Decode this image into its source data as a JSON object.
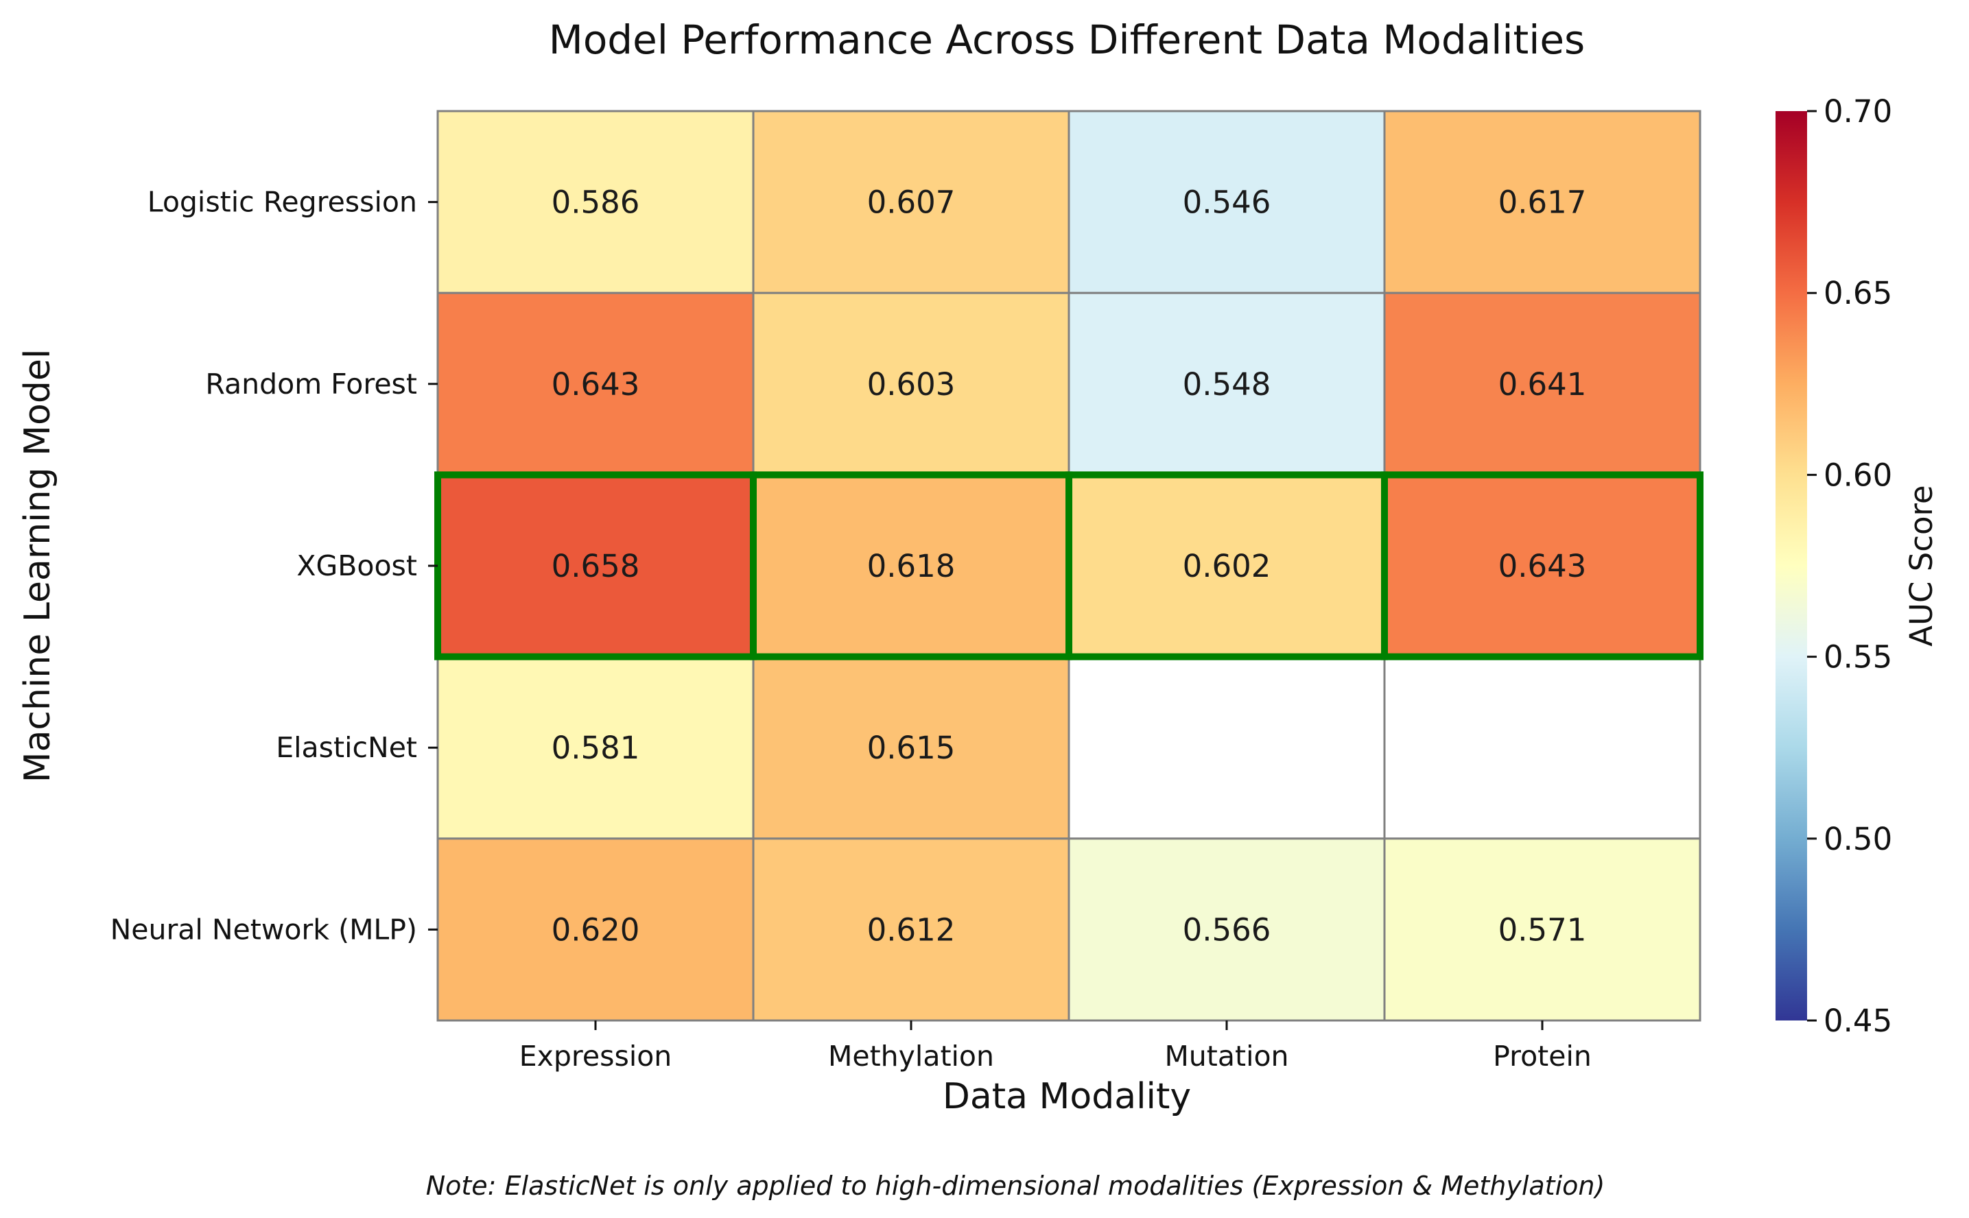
{
  "chart_data": {
    "type": "heatmap",
    "title": "Model Performance Across Different Data Modalities",
    "xlabel": "Data Modality",
    "ylabel": "Machine Learning Model",
    "x_categories": [
      "Expression",
      "Methylation",
      "Mutation",
      "Protein"
    ],
    "y_categories": [
      "Logistic Regression",
      "Random Forest",
      "XGBoost",
      "ElasticNet",
      "Neural Network (MLP)"
    ],
    "values": [
      [
        0.586,
        0.607,
        0.546,
        0.617
      ],
      [
        0.643,
        0.603,
        0.548,
        0.641
      ],
      [
        0.658,
        0.618,
        0.602,
        0.643
      ],
      [
        0.581,
        0.615,
        null,
        null
      ],
      [
        0.62,
        0.612,
        0.566,
        0.571
      ]
    ],
    "highlighted_row": "XGBoost",
    "highlight_color": "#008000",
    "colorbar": {
      "label": "AUC Score",
      "range": [
        0.45,
        0.7
      ],
      "ticks": [
        "0.45",
        "0.50",
        "0.55",
        "0.60",
        "0.65",
        "0.70"
      ],
      "colormap": "RdYlBu_r"
    },
    "note": "Note: ElasticNet is only applied to high-dimensional modalities (Expression & Methylation)"
  }
}
